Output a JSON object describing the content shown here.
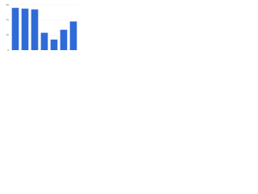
{
  "chart_data": {
    "type": "bar",
    "categories": [
      null,
      null,
      null,
      null,
      null,
      null,
      null
    ],
    "values": [
      56,
      55,
      54,
      23,
      14,
      27,
      38
    ],
    "color": "#2f6bd8",
    "ylim": [
      0,
      60
    ],
    "yticks": [
      0,
      20,
      40,
      60
    ],
    "grid": true
  }
}
